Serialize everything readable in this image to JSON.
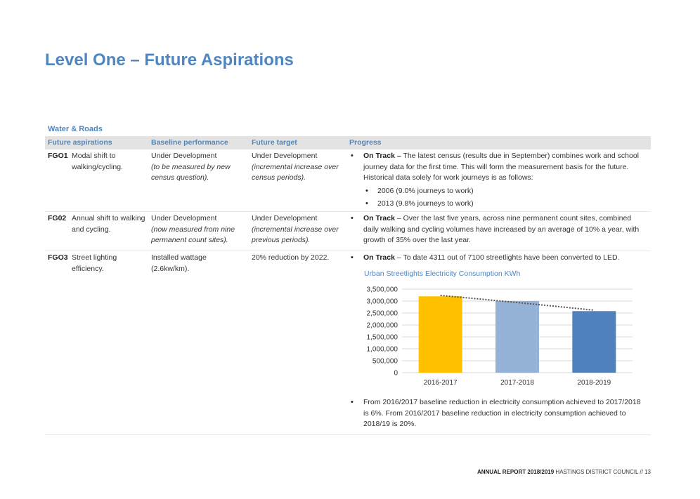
{
  "page_title": "Level One – Future Aspirations",
  "section": "Water & Roads",
  "headers": {
    "aspirations": "Future aspirations",
    "baseline": "Baseline performance",
    "target": "Future target",
    "progress": "Progress"
  },
  "rows": [
    {
      "code": "FGO1",
      "aspiration": "Modal shift to walking/cycling.",
      "baseline": "Under Development",
      "baseline_note": "(to be measured by new census question).",
      "target": "Under Development",
      "target_note": "(incremental increase over census periods).",
      "status": "On Track –",
      "progress": " The latest census (results due in September) combines work and school journey data for the first time. This will form the measurement basis for the future. Historical data solely for work journeys is as follows:",
      "sub_items": [
        "2006 (9.0% journeys to work)",
        "2013 (9.8% journeys to work)"
      ]
    },
    {
      "code": "FG02",
      "aspiration": "Annual shift to walking and cycling.",
      "baseline": "Under Development",
      "baseline_note": "(now measured from nine permanent count sites).",
      "target": "Under Development",
      "target_note": "(incremental increase over previous periods).",
      "status": "On Track",
      "progress": " – Over the last five years, across nine permanent count sites, combined daily walking and cycling volumes have increased by an average of 10% a year, with growth of 35% over the last year."
    },
    {
      "code": "FGO3",
      "aspiration": "Street lighting efficiency.",
      "baseline": "Installed wattage (2.6kw/km).",
      "target": "20% reduction by 2022.",
      "status": "On Track",
      "progress": " – To date 4311 out of 7100 streetlights have been converted to LED.",
      "progress_2": "From 2016/2017 baseline reduction in electricity consumption achieved to 2017/2018 is 6%. From 2016/2017 baseline reduction in electricity consumption achieved to 2018/19 is 20%."
    }
  ],
  "chart_data": {
    "type": "bar",
    "title": "Urban Streetlights Electricity Consumption KWh",
    "categories": [
      "2016-2017",
      "2017-2018",
      "2018-2019"
    ],
    "values": [
      3200000,
      3000000,
      2580000
    ],
    "colors": [
      "#ffc000",
      "#95b3d7",
      "#4f81bd"
    ],
    "trendline": [
      3240000,
      2940000,
      2620000
    ],
    "ylim": [
      0,
      3500000
    ],
    "yticks": [
      "0",
      "500,000",
      "1,000,000",
      "1,500,000",
      "2,000,000",
      "2,500,000",
      "3,000,000",
      "3,500,000"
    ],
    "grid": true
  },
  "footer": {
    "report": "ANNUAL REPORT 2018/2019",
    "council": " HASTINGS DISTRICT COUNCIL  //  13"
  }
}
